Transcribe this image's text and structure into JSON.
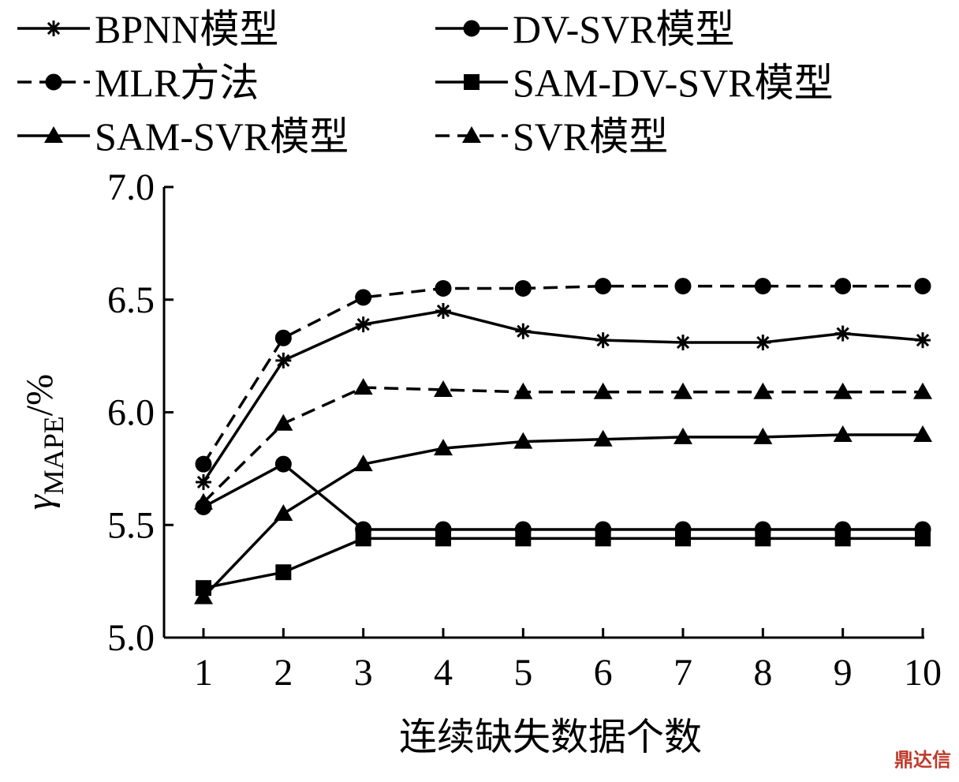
{
  "chart_data": {
    "type": "line",
    "xlabel": "连续缺失数据个数",
    "ylabel_base": "γ",
    "ylabel_sub": "MAPE",
    "ylabel_unit": "/%",
    "x": [
      1,
      2,
      3,
      4,
      5,
      6,
      7,
      8,
      9,
      10
    ],
    "ylim": [
      5.0,
      7.0
    ],
    "yticks": [
      "5.0",
      "5.5",
      "6.0",
      "6.5",
      "7.0"
    ],
    "legend_position": "top",
    "grid": false,
    "series": [
      {
        "name": "BPNN模型",
        "marker": "star",
        "dash": false,
        "values": [
          5.69,
          6.23,
          6.39,
          6.45,
          6.36,
          6.32,
          6.31,
          6.31,
          6.35,
          6.32
        ]
      },
      {
        "name": "DV-SVR模型",
        "marker": "circle",
        "dash": false,
        "values": [
          5.58,
          5.77,
          5.48,
          5.48,
          5.48,
          5.48,
          5.48,
          5.48,
          5.48,
          5.48
        ]
      },
      {
        "name": "MLR方法",
        "marker": "circle",
        "dash": true,
        "values": [
          5.77,
          6.33,
          6.51,
          6.55,
          6.55,
          6.56,
          6.56,
          6.56,
          6.56,
          6.56
        ]
      },
      {
        "name": "SAM-DV-SVR模型",
        "marker": "square",
        "dash": false,
        "values": [
          5.22,
          5.29,
          5.44,
          5.44,
          5.44,
          5.44,
          5.44,
          5.44,
          5.44,
          5.44
        ]
      },
      {
        "name": "SAM-SVR模型",
        "marker": "triangle",
        "dash": false,
        "values": [
          5.18,
          5.55,
          5.77,
          5.84,
          5.87,
          5.88,
          5.89,
          5.89,
          5.9,
          5.9
        ]
      },
      {
        "name": "SVR模型",
        "marker": "triangle",
        "dash": true,
        "values": [
          5.6,
          5.95,
          6.11,
          6.1,
          6.09,
          6.09,
          6.09,
          6.09,
          6.09,
          6.09
        ]
      }
    ]
  },
  "watermark": "鼎达信"
}
